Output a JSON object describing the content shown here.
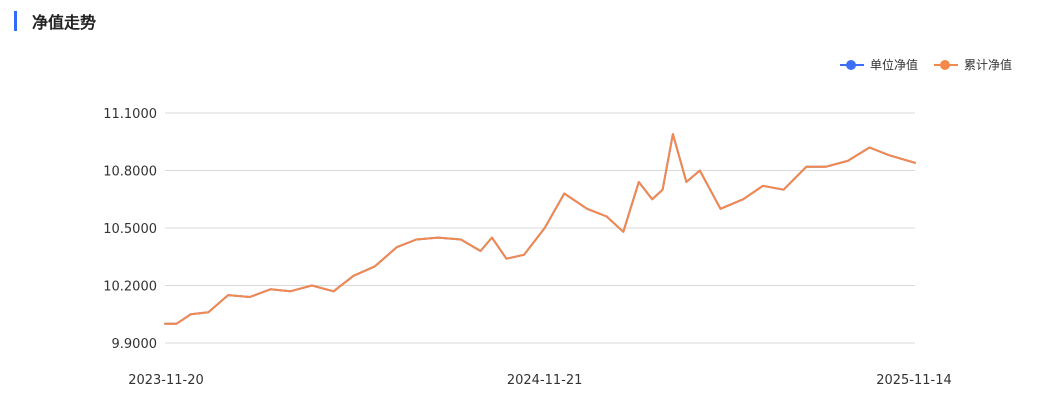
{
  "header": {
    "title": "净值走势"
  },
  "colors": {
    "accent": "#2f6bff",
    "unit_nav": "#3d6ef7",
    "cumulative_nav": "#f5894b",
    "grid": "#d9d9d9"
  },
  "legend": [
    {
      "label": "单位净值",
      "color": "#3d6ef7"
    },
    {
      "label": "累计净值",
      "color": "#f5894b"
    }
  ],
  "chart_data": {
    "type": "line",
    "title": "",
    "xlabel": "",
    "ylabel": "",
    "ylim": [
      9.9,
      11.1
    ],
    "yticks": [
      "11.1000",
      "10.8000",
      "10.5000",
      "10.2000",
      "9.9000"
    ],
    "xticks": [
      "2023-11-20",
      "2024-11-21",
      "2025-11-14"
    ],
    "x": [
      "2023-11-20",
      "2023-12-01",
      "2023-12-15",
      "2024-01-01",
      "2024-01-20",
      "2024-02-10",
      "2024-03-01",
      "2024-03-20",
      "2024-04-10",
      "2024-05-01",
      "2024-05-20",
      "2024-06-10",
      "2024-07-01",
      "2024-07-20",
      "2024-08-10",
      "2024-09-01",
      "2024-09-20",
      "2024-10-01",
      "2024-10-15",
      "2024-11-01",
      "2024-11-21",
      "2024-12-10",
      "2025-01-01",
      "2025-01-20",
      "2025-02-05",
      "2025-02-20",
      "2025-03-05",
      "2025-03-15",
      "2025-03-25",
      "2025-04-07",
      "2025-04-20",
      "2025-05-10",
      "2025-06-01",
      "2025-06-20",
      "2025-07-10",
      "2025-08-01",
      "2025-08-20",
      "2025-09-10",
      "2025-10-01",
      "2025-10-20",
      "2025-11-14"
    ],
    "series": [
      {
        "name": "单位净值",
        "values": [
          10.0,
          10.0,
          10.05,
          10.06,
          10.15,
          10.14,
          10.18,
          10.17,
          10.2,
          10.17,
          10.25,
          10.3,
          10.4,
          10.44,
          10.45,
          10.44,
          10.38,
          10.45,
          10.34,
          10.36,
          10.5,
          10.68,
          10.6,
          10.56,
          10.48,
          10.74,
          10.65,
          10.7,
          10.99,
          10.74,
          10.8,
          10.6,
          10.65,
          10.72,
          10.7,
          10.82,
          10.82,
          10.85,
          10.92,
          10.88,
          10.84
        ]
      },
      {
        "name": "累计净值",
        "values": [
          10.0,
          10.0,
          10.05,
          10.06,
          10.15,
          10.14,
          10.18,
          10.17,
          10.2,
          10.17,
          10.25,
          10.3,
          10.4,
          10.44,
          10.45,
          10.44,
          10.38,
          10.45,
          10.34,
          10.36,
          10.5,
          10.68,
          10.6,
          10.56,
          10.48,
          10.74,
          10.65,
          10.7,
          10.99,
          10.74,
          10.8,
          10.6,
          10.65,
          10.72,
          10.7,
          10.82,
          10.82,
          10.85,
          10.92,
          10.88,
          10.84
        ]
      }
    ]
  }
}
